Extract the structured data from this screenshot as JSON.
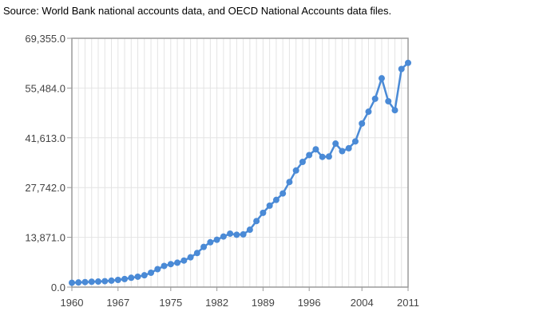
{
  "source_note": "Source: World Bank national accounts data, and OECD National Accounts data files.",
  "colors": {
    "series": "#4a8ad6",
    "grid": "#e4e4e4",
    "frame": "#9a9a9a",
    "tick_text": "#444444"
  },
  "chart_data": {
    "type": "line",
    "title": "",
    "xlabel": "",
    "ylabel": "",
    "xlim": [
      1960,
      2011
    ],
    "ylim": [
      0,
      69355
    ],
    "y_ticks": [
      0,
      13871,
      27742,
      41613,
      55484,
      69355
    ],
    "y_tick_labels": [
      "0.0",
      "13,871.0",
      "27,742.0",
      "41,613.0",
      "55,484.0",
      "69,355.0"
    ],
    "x_ticks": [
      1960,
      1967,
      1975,
      1982,
      1989,
      1996,
      2004,
      2011
    ],
    "x_tick_labels": [
      "1960",
      "1967",
      "1975",
      "1982",
      "1989",
      "1996",
      "2004",
      "2011"
    ],
    "grid": true,
    "legend": "none",
    "series": [
      {
        "x": [
          1960,
          1961,
          1962,
          1963,
          1964,
          1965,
          1966,
          1967,
          1968,
          1969,
          1970,
          1971,
          1972,
          1973,
          1974,
          1975,
          1976,
          1977,
          1978,
          1979,
          1980,
          1981,
          1982,
          1983,
          1984,
          1985,
          1986,
          1987,
          1988,
          1989,
          1990,
          1991,
          1992,
          1993,
          1994,
          1995,
          1996,
          1997,
          1998,
          1999,
          2000,
          2001,
          2002,
          2003,
          2004,
          2005,
          2006,
          2007,
          2008,
          2009,
          2010,
          2011
        ],
        "values": [
          1200,
          1300,
          1400,
          1500,
          1550,
          1650,
          1800,
          2000,
          2250,
          2600,
          2900,
          3300,
          4000,
          5000,
          5900,
          6400,
          6800,
          7400,
          8300,
          9500,
          11200,
          12500,
          13200,
          14100,
          14900,
          14600,
          14700,
          16000,
          18400,
          20700,
          22700,
          24300,
          26100,
          29300,
          32500,
          34900,
          36800,
          38400,
          36300,
          36400,
          40000,
          37900,
          38700,
          40600,
          45600,
          48900,
          52500,
          58200,
          51800,
          49300,
          60800,
          62500
        ]
      }
    ]
  }
}
